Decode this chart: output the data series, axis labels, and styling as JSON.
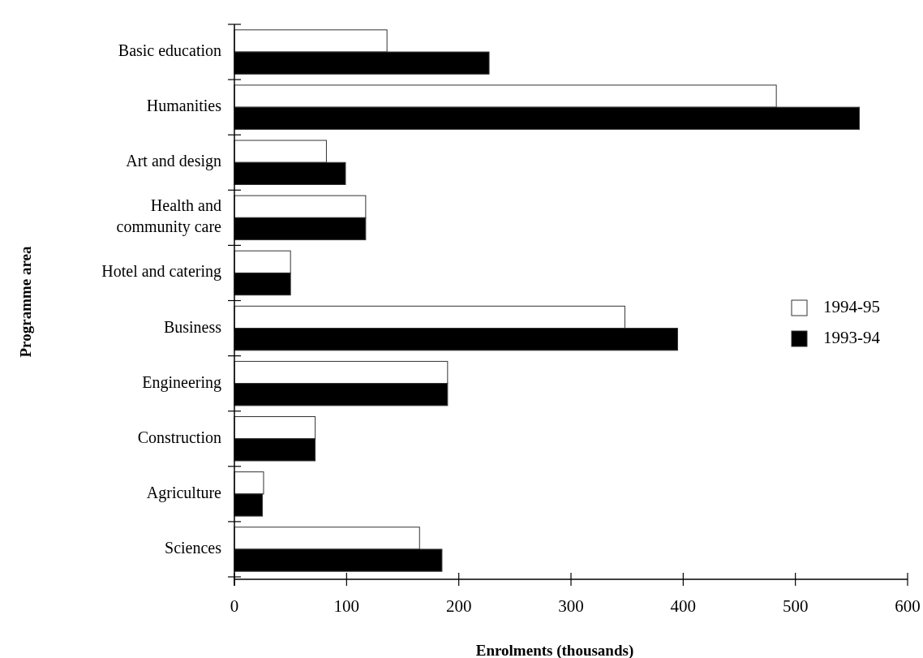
{
  "chart_data": {
    "type": "bar",
    "orientation": "horizontal",
    "xlabel": "Enrolments (thousands)",
    "ylabel": "Programme area",
    "categories": [
      "Basic education",
      "Humanities",
      "Art and design",
      "Health and community care",
      "Hotel and catering",
      "Business",
      "Engineering",
      "Construction",
      "Agriculture",
      "Sciences"
    ],
    "series": [
      {
        "name": "1994-95",
        "color": "#ffffff",
        "values": [
          136,
          483,
          82,
          117,
          50,
          348,
          190,
          72,
          26,
          165
        ]
      },
      {
        "name": "1993-94",
        "color": "#000000",
        "values": [
          227,
          557,
          99,
          117,
          50,
          395,
          190,
          72,
          25,
          185
        ]
      }
    ],
    "xlim": [
      0,
      600
    ],
    "xticks": [
      0,
      100,
      200,
      300,
      400,
      500,
      600
    ],
    "legend": "right",
    "grid": false
  }
}
